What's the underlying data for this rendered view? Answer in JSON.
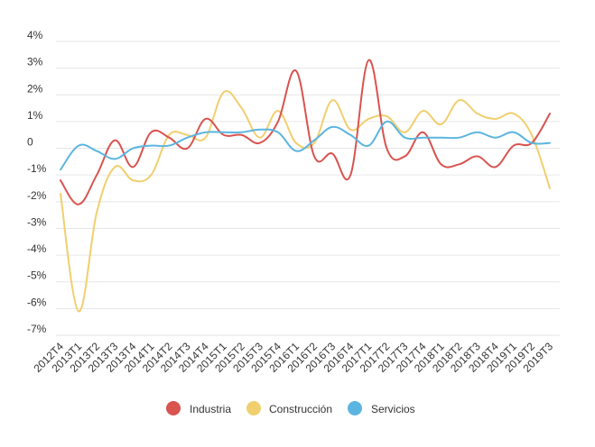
{
  "chart_data": {
    "type": "line",
    "title": "",
    "xlabel": "",
    "ylabel": "",
    "ylim": [
      -7,
      4
    ],
    "grid": true,
    "legend_position": "bottom",
    "y_ticks": [
      {
        "value": 4,
        "label": "4%"
      },
      {
        "value": 3,
        "label": "3%"
      },
      {
        "value": 2,
        "label": "2%"
      },
      {
        "value": 1,
        "label": "1%"
      },
      {
        "value": 0,
        "label": "0"
      },
      {
        "value": -1,
        "label": "-1%"
      },
      {
        "value": -2,
        "label": "-2%"
      },
      {
        "value": -3,
        "label": "-3%"
      },
      {
        "value": -4,
        "label": "-4%"
      },
      {
        "value": -5,
        "label": "-5%"
      },
      {
        "value": -6,
        "label": "-6%"
      },
      {
        "value": -7,
        "label": "-7%"
      }
    ],
    "categories": [
      "2012T4",
      "2013T1",
      "2013T2",
      "2013T3",
      "2013T4",
      "2014T1",
      "2014T2",
      "2014T3",
      "2014T4",
      "2015T1",
      "2015T2",
      "2015T3",
      "2015T4",
      "2016T1",
      "2016T2",
      "2016T3",
      "2016T4",
      "2017T1",
      "2017T2",
      "2017T3",
      "2017T4",
      "2018T1",
      "2018T2",
      "2018T3",
      "2018T4",
      "2019T1",
      "2019T2",
      "2019T3"
    ],
    "series": [
      {
        "name": "Industria",
        "color": "#d9534f",
        "values": [
          -1.2,
          -2.1,
          -1.0,
          0.3,
          -0.7,
          0.6,
          0.4,
          0.0,
          1.1,
          0.5,
          0.5,
          0.2,
          1.0,
          2.9,
          -0.3,
          -0.2,
          -1.0,
          3.3,
          0.0,
          -0.3,
          0.6,
          -0.6,
          -0.6,
          -0.3,
          -0.7,
          0.1,
          0.2,
          1.3
        ]
      },
      {
        "name": "Construcción",
        "color": "#f0cf6e",
        "values": [
          -1.7,
          -6.1,
          -2.4,
          -0.7,
          -1.2,
          -1.0,
          0.5,
          0.5,
          0.4,
          2.1,
          1.5,
          0.4,
          1.4,
          0.2,
          0.2,
          1.8,
          0.7,
          1.1,
          1.2,
          0.6,
          1.4,
          0.9,
          1.8,
          1.3,
          1.1,
          1.3,
          0.5,
          -1.5
        ]
      },
      {
        "name": "Servicios",
        "color": "#5bb5e0",
        "values": [
          -0.8,
          0.1,
          -0.1,
          -0.4,
          0.0,
          0.1,
          0.1,
          0.4,
          0.6,
          0.6,
          0.6,
          0.7,
          0.6,
          -0.1,
          0.3,
          0.8,
          0.5,
          0.1,
          1.0,
          0.4,
          0.4,
          0.4,
          0.4,
          0.6,
          0.4,
          0.6,
          0.2,
          0.2
        ]
      }
    ]
  }
}
